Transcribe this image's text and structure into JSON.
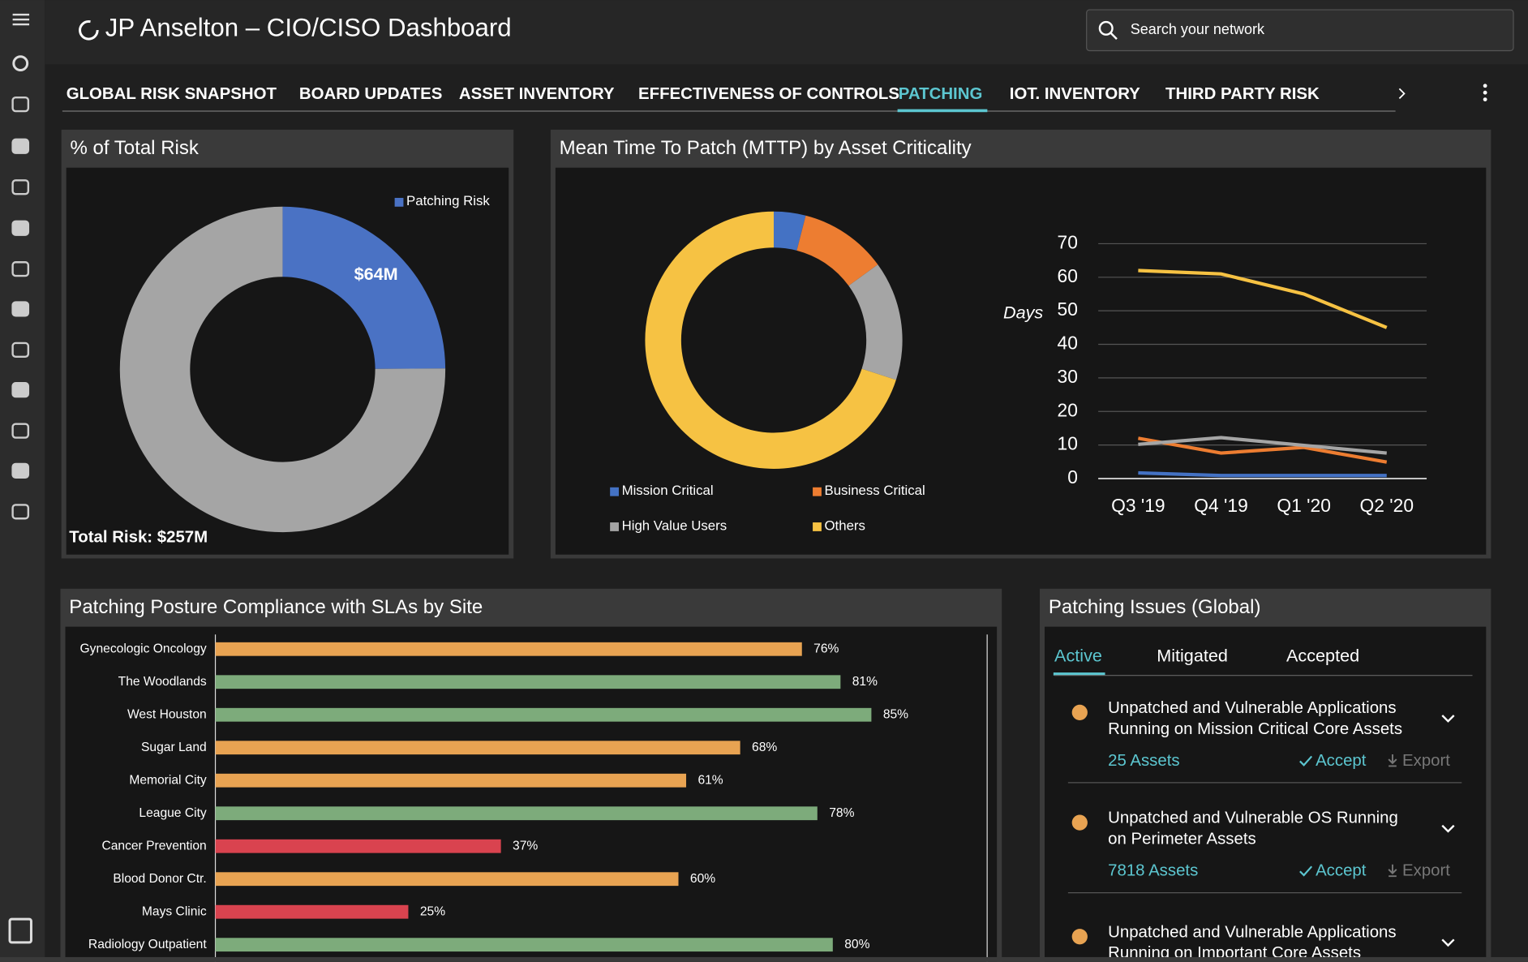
{
  "header": {
    "title": "JP Anselton – CIO/CISO Dashboard",
    "search_placeholder": "Search your network"
  },
  "tabs": {
    "items": [
      "GLOBAL RISK SNAPSHOT",
      "BOARD UPDATES",
      "ASSET INVENTORY",
      "EFFECTIVENESS OF CONTROLS",
      "PATCHING",
      "IOT. INVENTORY",
      "THIRD PARTY RISK"
    ],
    "active": 4
  },
  "chart_data": [
    {
      "type": "pie",
      "donut": true,
      "title": "% of Total Risk",
      "categories": [
        "Patching Risk",
        null
      ],
      "values": [
        64,
        193
      ],
      "value_labels": [
        "$64M",
        null
      ],
      "colors": [
        "#4a72c4",
        "#a5a5a5"
      ],
      "total_label": "Total Risk: $257M",
      "legend": "top-right"
    },
    {
      "type": "pie",
      "donut": true,
      "title": "Mean Time To Patch (MTTP) by Asset Criticality",
      "categories": [
        "Mission Critical",
        "Business Critical",
        "High Value Users",
        "Others"
      ],
      "values": [
        4,
        11,
        15,
        70
      ],
      "colors": [
        "#4472c4",
        "#ed7d31",
        "#a5a5a5",
        "#f6c243"
      ],
      "legend": "bottom"
    },
    {
      "type": "line",
      "x": [
        "Q3 '19",
        "Q4 '19",
        "Q1 '20",
        "Q2 '20"
      ],
      "y_label": "Days",
      "ylim": [
        0,
        70
      ],
      "yticks": [
        0,
        10,
        20,
        30,
        40,
        50,
        60,
        70
      ],
      "grid": true,
      "series": [
        {
          "color": "#4472c4",
          "values": [
            1.7,
            0.9,
            0.9,
            0.9
          ]
        },
        {
          "color": "#ed7d31",
          "values": [
            12,
            7.6,
            9.3,
            4.9
          ]
        },
        {
          "color": "#a5a5a5",
          "values": [
            10.2,
            12.2,
            9.9,
            7.6
          ]
        },
        {
          "color": "#f6c243",
          "values": [
            62,
            61,
            55,
            45
          ]
        }
      ]
    },
    {
      "type": "hbar",
      "title": "Patching Posture Compliance with SLAs by Site",
      "categories": [
        "Gynecologic Oncology",
        "The Woodlands",
        "West Houston",
        "Sugar Land",
        "Memorial City",
        "League City",
        "Cancer Prevention",
        "Blood Donor Ctr.",
        "Mays Clinic",
        "Radiology Outpatient"
      ],
      "values": [
        76,
        81,
        85,
        68,
        61,
        78,
        37,
        60,
        25,
        80
      ],
      "value_labels": [
        "76%",
        "81%",
        "85%",
        "68%",
        "61%",
        "78%",
        "37%",
        "60%",
        "25%",
        "80%"
      ],
      "colors": [
        "#e8a352",
        "#7dab7b",
        "#7dab7b",
        "#e8a352",
        "#e8a352",
        "#7dab7b",
        "#d9434f",
        "#e8a352",
        "#d9434f",
        "#7dab7b"
      ],
      "xlim": [
        0,
        100
      ]
    }
  ],
  "issues_panel": {
    "title": "Patching Issues (Global)",
    "tabs": [
      "Active",
      "Mitigated",
      "Accepted"
    ],
    "active_tab": 0,
    "actions": {
      "accept": "Accept",
      "export": "Export"
    },
    "items": [
      {
        "title_lines": [
          "Unpatched and Vulnerable Applications",
          "Running on Mission Critical Core Assets"
        ],
        "count": "25 Assets"
      },
      {
        "title_lines": [
          "Unpatched and Vulnerable OS Running",
          "on Perimeter Assets"
        ],
        "count": "7818 Assets"
      },
      {
        "title_lines": [
          "Unpatched and Vulnerable Applications",
          "Running on Important Core Assets"
        ]
      }
    ]
  }
}
